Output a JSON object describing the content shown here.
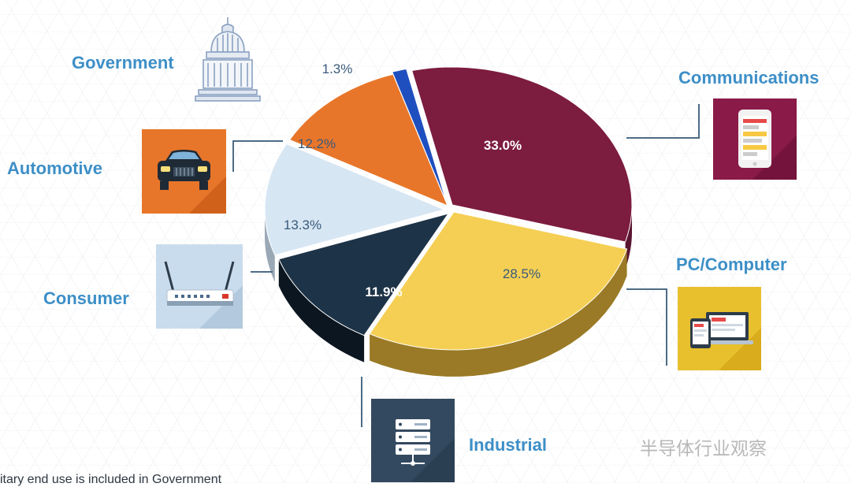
{
  "chart_data": {
    "type": "pie",
    "style": "3d-exploded",
    "slices": [
      {
        "label": "Communications",
        "value": 33.0,
        "display": "33.0%",
        "color": "#7c1c3e",
        "side": "#5a1430",
        "text_color": "#ffffff",
        "bold": true
      },
      {
        "label": "PC/Computer",
        "value": 28.5,
        "display": "28.5%",
        "color": "#f5cf54",
        "side": "#9a7a26",
        "text_color": "#3a5a7a",
        "bold": false
      },
      {
        "label": "Industrial",
        "value": 11.9,
        "display": "11.9%",
        "color": "#1d3347",
        "side": "#0c1620",
        "text_color": "#ffffff",
        "bold": true
      },
      {
        "label": "Consumer",
        "value": 13.3,
        "display": "13.3%",
        "color": "#d7e6f3",
        "side": "#9aa8b6",
        "text_color": "#3a5a7a",
        "bold": false
      },
      {
        "label": "Automotive",
        "value": 12.2,
        "display": "12.2%",
        "color": "#e8762a",
        "side": "#a5531c",
        "text_color": "#3a5a7a",
        "bold": false
      },
      {
        "label": "Government",
        "value": 1.3,
        "display": "1.3%",
        "color": "#1f4fbf",
        "side": "#13337f",
        "text_color": "#3a5a7a",
        "bold": false
      }
    ]
  },
  "segments": {
    "government": {
      "label": "Government",
      "icon": "capitol-building-icon"
    },
    "automotive": {
      "label": "Automotive",
      "icon": "car-icon",
      "icon_bg": "#e8762a"
    },
    "consumer": {
      "label": "Consumer",
      "icon": "wifi-router-icon",
      "icon_bg": "#c9dced"
    },
    "communications": {
      "label": "Communications",
      "icon": "smartphone-icon",
      "icon_bg": "#8a1a48"
    },
    "pc_computer": {
      "label": "PC/Computer",
      "icon": "laptop-tablet-icon",
      "icon_bg": "#e8c02e"
    },
    "industrial": {
      "label": "Industrial",
      "icon": "server-icon",
      "icon_bg": "#33495f"
    }
  },
  "footnote": "itary end use is included in Government",
  "watermark": "半导体行业观察"
}
